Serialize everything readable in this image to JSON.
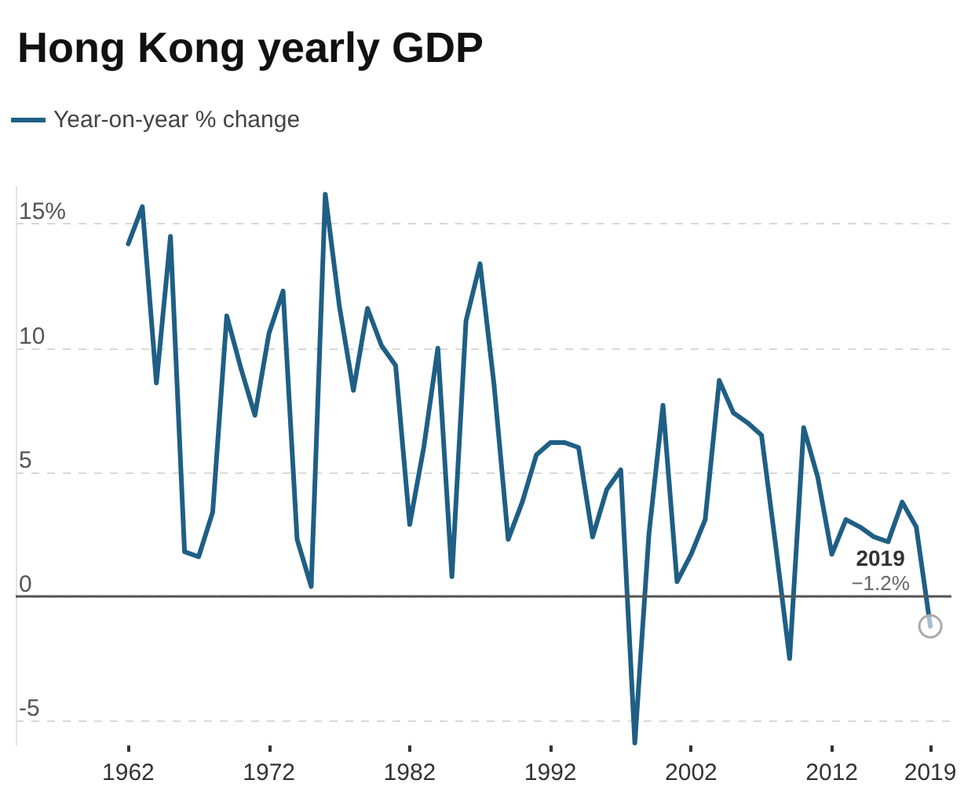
{
  "chart_data": {
    "type": "line",
    "title": "Hong Kong yearly GDP",
    "x": [
      1962,
      1963,
      1964,
      1965,
      1966,
      1967,
      1968,
      1969,
      1970,
      1971,
      1972,
      1973,
      1974,
      1975,
      1976,
      1977,
      1978,
      1979,
      1980,
      1981,
      1982,
      1983,
      1984,
      1985,
      1986,
      1987,
      1988,
      1989,
      1990,
      1991,
      1992,
      1993,
      1994,
      1995,
      1996,
      1997,
      1998,
      1999,
      2000,
      2001,
      2002,
      2003,
      2004,
      2005,
      2006,
      2007,
      2008,
      2009,
      2010,
      2011,
      2012,
      2013,
      2014,
      2015,
      2016,
      2017,
      2018,
      2019
    ],
    "series": [
      {
        "name": "Year-on-year % change",
        "color": "#1f5f85",
        "values": [
          14.2,
          15.7,
          8.6,
          14.5,
          1.8,
          1.6,
          3.4,
          11.3,
          9.2,
          7.3,
          10.6,
          12.3,
          2.3,
          0.4,
          16.2,
          11.7,
          8.3,
          11.6,
          10.1,
          9.3,
          2.9,
          6.0,
          10.0,
          0.8,
          11.1,
          13.4,
          8.5,
          2.3,
          3.8,
          5.7,
          6.2,
          6.2,
          6.0,
          2.4,
          4.3,
          5.1,
          -5.9,
          2.5,
          7.7,
          0.6,
          1.7,
          3.1,
          8.7,
          7.4,
          7.0,
          6.5,
          2.1,
          -2.5,
          6.8,
          4.8,
          1.7,
          3.1,
          2.8,
          2.4,
          2.2,
          3.8,
          2.8,
          -1.2
        ]
      }
    ],
    "xlim": [
      1954,
      2020.5
    ],
    "xticks": [
      1962,
      1972,
      1982,
      1992,
      2002,
      2012,
      2019
    ],
    "ylim": [
      -6,
      16.5
    ],
    "yticks": [
      -5,
      0,
      5,
      10,
      {
        "value": 15,
        "label": "15%"
      }
    ],
    "ref_lines": [
      {
        "axis": "y",
        "value": 0,
        "color": "#555555",
        "line_style": "solid"
      }
    ],
    "annotations": [
      {
        "text": "2019",
        "x": 2019,
        "y": -1.2
      },
      {
        "text": "−1.2%",
        "x": 2019,
        "y": -1.2
      }
    ],
    "grid": "y",
    "legend": "top left",
    "marker": "none",
    "line_style": "solid"
  }
}
